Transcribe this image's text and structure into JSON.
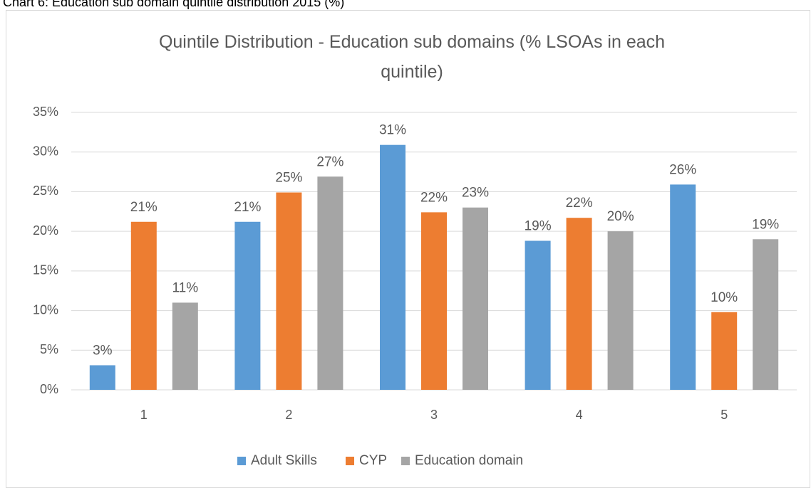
{
  "caption": "Chart 6: Education sub domain quintile distribution 2015 (%)",
  "chart_data": {
    "type": "bar",
    "title": "Quintile Distribution - Education sub domains (% LSOAs in each quintile)",
    "categories": [
      "1",
      "2",
      "3",
      "4",
      "5"
    ],
    "series": [
      {
        "name": "Adult Skills",
        "color": "#5b9bd5",
        "values": [
          3.1,
          21.2,
          30.9,
          18.8,
          25.9
        ],
        "value_labels": [
          "3%",
          "21%",
          "31%",
          "19%",
          "26%"
        ]
      },
      {
        "name": "CYP",
        "color": "#ed7d31",
        "values": [
          21.2,
          24.9,
          22.4,
          21.7,
          9.8
        ],
        "value_labels": [
          "21%",
          "25%",
          "22%",
          "22%",
          "10%"
        ]
      },
      {
        "name": "Education domain",
        "color": "#a5a5a5",
        "values": [
          11,
          26.9,
          23,
          20,
          19
        ],
        "value_labels": [
          "11%",
          "27%",
          "23%",
          "20%",
          "19%"
        ]
      }
    ],
    "ylim": [
      0,
      35
    ],
    "yticks": [
      {
        "value": 0,
        "label": "0%"
      },
      {
        "value": 5,
        "label": "5%"
      },
      {
        "value": 10,
        "label": "10%"
      },
      {
        "value": 15,
        "label": "15%"
      },
      {
        "value": 20,
        "label": "20%"
      },
      {
        "value": 25,
        "label": "25%"
      },
      {
        "value": 30,
        "label": "30%"
      },
      {
        "value": 35,
        "label": "35%"
      }
    ],
    "grid": true,
    "legend": "bottom"
  }
}
